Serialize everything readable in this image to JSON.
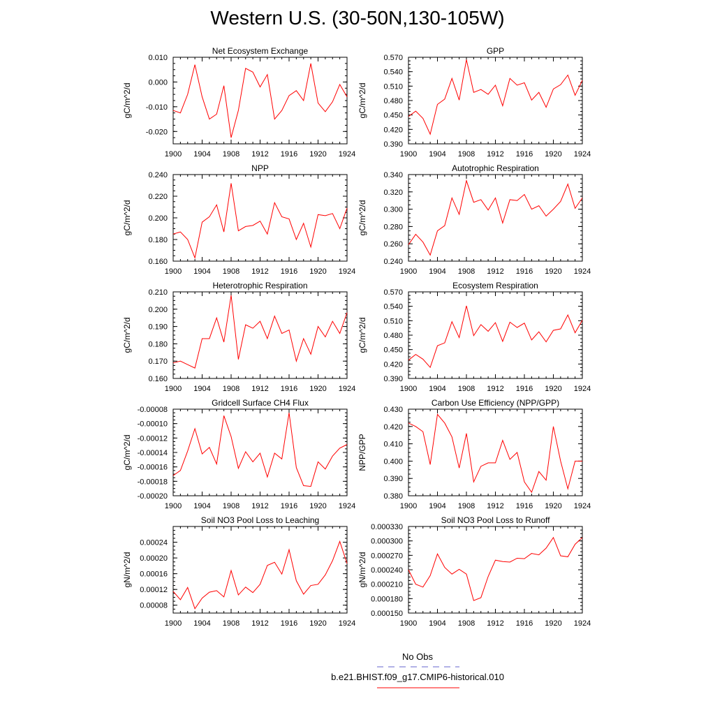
{
  "page": {
    "title": "Western U.S. (30-50N,130-105W)"
  },
  "legend": {
    "obs_label": "No Obs",
    "obs_color": "#6666cc",
    "model_label": "b.e21.BHIST.f09_g17.CMIP6-historical.010",
    "model_color": "#ff0000"
  },
  "chart_data": [
    {
      "type": "line",
      "title": "Net Ecosystem Exchange",
      "xlabel": "",
      "ylabel": "gC/m^2/d",
      "xlim": [
        1900,
        1924
      ],
      "ylim": [
        -0.025,
        0.01
      ],
      "xticks": [
        "1900",
        "1904",
        "1908",
        "1912",
        "1916",
        "1920",
        "1924"
      ],
      "yticks": [
        "0.010",
        "0.000",
        "-0.010",
        "-0.020"
      ],
      "ytick_values": [
        0.01,
        0.0,
        -0.01,
        -0.02
      ],
      "x": [
        1900,
        1901,
        1902,
        1903,
        1904,
        1905,
        1906,
        1907,
        1908,
        1909,
        1910,
        1911,
        1912,
        1913,
        1914,
        1915,
        1916,
        1917,
        1918,
        1919,
        1920,
        1921,
        1922,
        1923,
        1924
      ],
      "series": [
        {
          "name": "b.e21.BHIST.f09_g17.CMIP6-historical.010",
          "color": "#ff0000",
          "values": [
            -0.0115,
            -0.0125,
            -0.005,
            0.007,
            -0.006,
            -0.015,
            -0.013,
            -0.0015,
            -0.0225,
            -0.0115,
            0.0055,
            0.004,
            -0.002,
            0.003,
            -0.015,
            -0.0115,
            -0.0055,
            -0.0035,
            -0.0075,
            0.0075,
            -0.0085,
            -0.012,
            -0.008,
            -0.001,
            -0.006
          ]
        }
      ]
    },
    {
      "type": "line",
      "title": "GPP",
      "xlabel": "",
      "ylabel": "gC/m^2/d",
      "xlim": [
        1900,
        1924
      ],
      "ylim": [
        0.39,
        0.57
      ],
      "xticks": [
        "1900",
        "1904",
        "1908",
        "1912",
        "1916",
        "1920",
        "1924"
      ],
      "yticks": [
        "0.570",
        "0.540",
        "0.510",
        "0.480",
        "0.450",
        "0.420",
        "0.390"
      ],
      "ytick_values": [
        0.57,
        0.54,
        0.51,
        0.48,
        0.45,
        0.42,
        0.39
      ],
      "x": [
        1900,
        1901,
        1902,
        1903,
        1904,
        1905,
        1906,
        1907,
        1908,
        1909,
        1910,
        1911,
        1912,
        1913,
        1914,
        1915,
        1916,
        1917,
        1918,
        1919,
        1920,
        1921,
        1922,
        1923,
        1924
      ],
      "series": [
        {
          "name": "b.e21.BHIST.f09_g17.CMIP6-historical.010",
          "color": "#ff0000",
          "values": [
            0.447,
            0.458,
            0.443,
            0.41,
            0.472,
            0.483,
            0.526,
            0.481,
            0.565,
            0.497,
            0.503,
            0.493,
            0.512,
            0.469,
            0.526,
            0.512,
            0.517,
            0.481,
            0.497,
            0.466,
            0.504,
            0.513,
            0.533,
            0.491,
            0.522
          ]
        }
      ]
    },
    {
      "type": "line",
      "title": "NPP",
      "xlabel": "",
      "ylabel": "gC/m^2/d",
      "xlim": [
        1900,
        1924
      ],
      "ylim": [
        0.16,
        0.24
      ],
      "xticks": [
        "1900",
        "1904",
        "1908",
        "1912",
        "1916",
        "1920",
        "1924"
      ],
      "yticks": [
        "0.240",
        "0.220",
        "0.200",
        "0.180",
        "0.160"
      ],
      "ytick_values": [
        0.24,
        0.22,
        0.2,
        0.18,
        0.16
      ],
      "x": [
        1900,
        1901,
        1902,
        1903,
        1904,
        1905,
        1906,
        1907,
        1908,
        1909,
        1910,
        1911,
        1912,
        1913,
        1914,
        1915,
        1916,
        1917,
        1918,
        1919,
        1920,
        1921,
        1922,
        1923,
        1924
      ],
      "series": [
        {
          "name": "b.e21.BHIST.f09_g17.CMIP6-historical.010",
          "color": "#ff0000",
          "values": [
            0.185,
            0.187,
            0.18,
            0.163,
            0.196,
            0.201,
            0.212,
            0.187,
            0.232,
            0.188,
            0.192,
            0.193,
            0.197,
            0.185,
            0.214,
            0.201,
            0.199,
            0.18,
            0.195,
            0.173,
            0.203,
            0.202,
            0.204,
            0.19,
            0.209
          ]
        }
      ]
    },
    {
      "type": "line",
      "title": "Autotrophic Respiration",
      "xlabel": "",
      "ylabel": "gC/m^2/d",
      "xlim": [
        1900,
        1924
      ],
      "ylim": [
        0.24,
        0.34
      ],
      "xticks": [
        "1900",
        "1904",
        "1908",
        "1912",
        "1916",
        "1920",
        "1924"
      ],
      "yticks": [
        "0.340",
        "0.320",
        "0.300",
        "0.280",
        "0.260",
        "0.240"
      ],
      "ytick_values": [
        0.34,
        0.32,
        0.3,
        0.28,
        0.26,
        0.24
      ],
      "x": [
        1900,
        1901,
        1902,
        1903,
        1904,
        1905,
        1906,
        1907,
        1908,
        1909,
        1910,
        1911,
        1912,
        1913,
        1914,
        1915,
        1916,
        1917,
        1918,
        1919,
        1920,
        1921,
        1922,
        1923,
        1924
      ],
      "series": [
        {
          "name": "b.e21.BHIST.f09_g17.CMIP6-historical.010",
          "color": "#ff0000",
          "values": [
            0.259,
            0.271,
            0.262,
            0.247,
            0.275,
            0.281,
            0.313,
            0.294,
            0.333,
            0.308,
            0.311,
            0.299,
            0.313,
            0.284,
            0.311,
            0.31,
            0.317,
            0.3,
            0.304,
            0.292,
            0.3,
            0.309,
            0.329,
            0.301,
            0.313
          ]
        }
      ]
    },
    {
      "type": "line",
      "title": "Heterotrophic Respiration",
      "xlabel": "",
      "ylabel": "gC/m^2/d",
      "xlim": [
        1900,
        1924
      ],
      "ylim": [
        0.16,
        0.21
      ],
      "xticks": [
        "1900",
        "1904",
        "1908",
        "1912",
        "1916",
        "1920",
        "1924"
      ],
      "yticks": [
        "0.210",
        "0.200",
        "0.190",
        "0.180",
        "0.170",
        "0.160"
      ],
      "ytick_values": [
        0.21,
        0.2,
        0.19,
        0.18,
        0.17,
        0.16
      ],
      "x": [
        1900,
        1901,
        1902,
        1903,
        1904,
        1905,
        1906,
        1907,
        1908,
        1909,
        1910,
        1911,
        1912,
        1913,
        1914,
        1915,
        1916,
        1917,
        1918,
        1919,
        1920,
        1921,
        1922,
        1923,
        1924
      ],
      "series": [
        {
          "name": "b.e21.BHIST.f09_g17.CMIP6-historical.010",
          "color": "#ff0000",
          "values": [
            0.169,
            0.17,
            0.168,
            0.166,
            0.183,
            0.183,
            0.195,
            0.181,
            0.208,
            0.171,
            0.191,
            0.189,
            0.193,
            0.183,
            0.196,
            0.186,
            0.188,
            0.17,
            0.183,
            0.174,
            0.19,
            0.184,
            0.193,
            0.186,
            0.198
          ]
        }
      ]
    },
    {
      "type": "line",
      "title": "Ecosystem Respiration",
      "xlabel": "",
      "ylabel": "gC/m^2/d",
      "xlim": [
        1900,
        1924
      ],
      "ylim": [
        0.39,
        0.57
      ],
      "xticks": [
        "1900",
        "1904",
        "1908",
        "1912",
        "1916",
        "1920",
        "1924"
      ],
      "yticks": [
        "0.570",
        "0.540",
        "0.510",
        "0.480",
        "0.450",
        "0.420",
        "0.390"
      ],
      "ytick_values": [
        0.57,
        0.54,
        0.51,
        0.48,
        0.45,
        0.42,
        0.39
      ],
      "x": [
        1900,
        1901,
        1902,
        1903,
        1904,
        1905,
        1906,
        1907,
        1908,
        1909,
        1910,
        1911,
        1912,
        1913,
        1914,
        1915,
        1916,
        1917,
        1918,
        1919,
        1920,
        1921,
        1922,
        1923,
        1924
      ],
      "series": [
        {
          "name": "b.e21.BHIST.f09_g17.CMIP6-historical.010",
          "color": "#ff0000",
          "values": [
            0.428,
            0.44,
            0.43,
            0.413,
            0.458,
            0.464,
            0.508,
            0.475,
            0.541,
            0.479,
            0.502,
            0.488,
            0.506,
            0.467,
            0.507,
            0.496,
            0.505,
            0.47,
            0.487,
            0.466,
            0.49,
            0.493,
            0.522,
            0.485,
            0.511
          ]
        }
      ]
    },
    {
      "type": "line",
      "title": "Gridcell Surface CH4 Flux",
      "xlabel": "",
      "ylabel": "gC/m^2/d",
      "xlim": [
        1900,
        1924
      ],
      "ylim": [
        -0.0002,
        -8e-05
      ],
      "xticks": [
        "1900",
        "1904",
        "1908",
        "1912",
        "1916",
        "1920",
        "1924"
      ],
      "yticks": [
        "-0.00008",
        "-0.00010",
        "-0.00012",
        "-0.00014",
        "-0.00016",
        "-0.00018",
        "-0.00020"
      ],
      "ytick_values": [
        -8e-05,
        -0.0001,
        -0.00012,
        -0.00014,
        -0.00016,
        -0.00018,
        -0.0002
      ],
      "x": [
        1900,
        1901,
        1902,
        1903,
        1904,
        1905,
        1906,
        1907,
        1908,
        1909,
        1910,
        1911,
        1912,
        1913,
        1914,
        1915,
        1916,
        1917,
        1918,
        1919,
        1920,
        1921,
        1922,
        1923,
        1924
      ],
      "series": [
        {
          "name": "b.e21.BHIST.f09_g17.CMIP6-historical.010",
          "color": "#ff0000",
          "values": [
            -0.000172,
            -0.000165,
            -0.000138,
            -0.000107,
            -0.000142,
            -0.000133,
            -0.000156,
            -8.9e-05,
            -0.000118,
            -0.000162,
            -0.000139,
            -0.000153,
            -0.000141,
            -0.000174,
            -0.000141,
            -0.000149,
            -8.5e-05,
            -0.000161,
            -0.000186,
            -0.000187,
            -0.000153,
            -0.000163,
            -0.000145,
            -0.000134,
            -0.000129
          ]
        }
      ]
    },
    {
      "type": "line",
      "title": "Carbon Use Efficiency (NPP/GPP)",
      "xlabel": "",
      "ylabel": "NPP/GPP",
      "xlim": [
        1900,
        1924
      ],
      "ylim": [
        0.38,
        0.43
      ],
      "xticks": [
        "1900",
        "1904",
        "1908",
        "1912",
        "1916",
        "1920",
        "1924"
      ],
      "yticks": [
        "0.430",
        "0.420",
        "0.410",
        "0.400",
        "0.390",
        "0.380"
      ],
      "ytick_values": [
        0.43,
        0.42,
        0.41,
        0.4,
        0.39,
        0.38
      ],
      "x": [
        1900,
        1901,
        1902,
        1903,
        1904,
        1905,
        1906,
        1907,
        1908,
        1909,
        1910,
        1911,
        1912,
        1913,
        1914,
        1915,
        1916,
        1917,
        1918,
        1919,
        1920,
        1921,
        1922,
        1923,
        1924
      ],
      "series": [
        {
          "name": "b.e21.BHIST.f09_g17.CMIP6-historical.010",
          "color": "#ff0000",
          "values": [
            0.422,
            0.42,
            0.417,
            0.398,
            0.427,
            0.422,
            0.414,
            0.396,
            0.416,
            0.388,
            0.397,
            0.399,
            0.399,
            0.412,
            0.401,
            0.405,
            0.388,
            0.382,
            0.394,
            0.389,
            0.42,
            0.4,
            0.384,
            0.4,
            0.4
          ]
        }
      ]
    },
    {
      "type": "line",
      "title": "Soil NO3 Pool Loss to Leaching",
      "xlabel": "",
      "ylabel": "gN/m^2/d",
      "xlim": [
        1900,
        1924
      ],
      "ylim": [
        6e-05,
        0.00028
      ],
      "xticks": [
        "1900",
        "1904",
        "1908",
        "1912",
        "1916",
        "1920",
        "1924"
      ],
      "yticks": [
        "0.00024",
        "0.00020",
        "0.00016",
        "0.00012",
        "0.00008"
      ],
      "ytick_values": [
        0.00024,
        0.0002,
        0.00016,
        0.00012,
        8e-05
      ],
      "x": [
        1900,
        1901,
        1902,
        1903,
        1904,
        1905,
        1906,
        1907,
        1908,
        1909,
        1910,
        1911,
        1912,
        1913,
        1914,
        1915,
        1916,
        1917,
        1918,
        1919,
        1920,
        1921,
        1922,
        1923,
        1924
      ],
      "series": [
        {
          "name": "b.e21.BHIST.f09_g17.CMIP6-historical.010",
          "color": "#ff0000",
          "values": [
            0.000115,
            9.4e-05,
            0.000125,
            7.1e-05,
            9.8e-05,
            0.000113,
            0.000117,
            0.000101,
            0.000168,
            0.000106,
            0.000126,
            0.000112,
            0.000133,
            0.000181,
            0.000189,
            0.000159,
            0.000221,
            0.000142,
            0.000108,
            0.00013,
            0.000133,
            0.000157,
            0.000193,
            0.000242,
            0.000186
          ]
        }
      ]
    },
    {
      "type": "line",
      "title": "Soil NO3 Pool Loss to Runoff",
      "xlabel": "",
      "ylabel": "gN/m^2/d",
      "xlim": [
        1900,
        1924
      ],
      "ylim": [
        0.00015,
        0.00033
      ],
      "xticks": [
        "1900",
        "1904",
        "1908",
        "1912",
        "1916",
        "1920",
        "1924"
      ],
      "yticks": [
        "0.000330",
        "0.000300",
        "0.000270",
        "0.000240",
        "0.000210",
        "0.000180",
        "0.000150"
      ],
      "ytick_values": [
        0.00033,
        0.0003,
        0.00027,
        0.00024,
        0.00021,
        0.00018,
        0.00015
      ],
      "x": [
        1900,
        1901,
        1902,
        1903,
        1904,
        1905,
        1906,
        1907,
        1908,
        1909,
        1910,
        1911,
        1912,
        1913,
        1914,
        1915,
        1916,
        1917,
        1918,
        1919,
        1920,
        1921,
        1922,
        1923,
        1924
      ],
      "series": [
        {
          "name": "b.e21.BHIST.f09_g17.CMIP6-historical.010",
          "color": "#ff0000",
          "values": [
            0.00024,
            0.00021,
            0.000204,
            0.000228,
            0.000273,
            0.000245,
            0.000231,
            0.000241,
            0.000231,
            0.000176,
            0.000182,
            0.000226,
            0.00026,
            0.000257,
            0.000256,
            0.000264,
            0.000263,
            0.000274,
            0.000271,
            0.000285,
            0.000307,
            0.000269,
            0.000267,
            0.000293,
            0.000307
          ]
        }
      ]
    }
  ]
}
